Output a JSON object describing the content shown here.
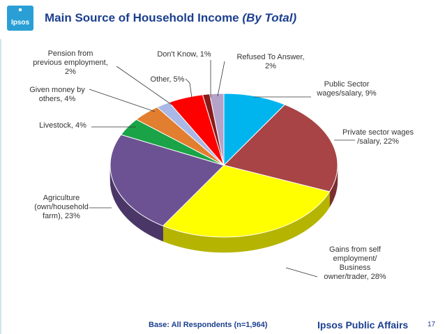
{
  "header": {
    "logo_text": "Ipsos",
    "title": "Main Source of Household Income",
    "title_emphasis": "(By Total)"
  },
  "chart_data": {
    "type": "pie",
    "title": "Main Source of Household Income (By Total)",
    "slices": [
      {
        "label": "Public Sector wages/salary, 9%",
        "value": 9,
        "color": "#00b4ee",
        "dark": "#0087b3"
      },
      {
        "label": "Private sector wages /salary, 22%",
        "value": 22,
        "color": "#a84445",
        "dark": "#7a2f30"
      },
      {
        "label": "Gains from self employment/ Business owner/trader, 28%",
        "value": 28,
        "color": "#ffff00",
        "dark": "#b5b400"
      },
      {
        "label": "Agriculture (own/household farm), 23%",
        "value": 23,
        "color": "#6d5293",
        "dark": "#4a3767"
      },
      {
        "label": "Livestock, 4%",
        "value": 4,
        "color": "#1aa347",
        "dark": "#137533"
      },
      {
        "label": "Given money by others, 4%",
        "value": 4,
        "color": "#e27e2f",
        "dark": "#a9581c"
      },
      {
        "label": "Pension from previous employment, 2%",
        "value": 2,
        "color": "#a9b8e6",
        "dark": "#7c8bb5"
      },
      {
        "label": "Other, 5%",
        "value": 5,
        "color": "#ff0000",
        "dark": "#b30000"
      },
      {
        "label": "Don't Know, 1%",
        "value": 1,
        "color": "#8b1a1a",
        "dark": "#5c1010"
      },
      {
        "label": "Refused To Answer, 2%",
        "value": 2,
        "color": "#b5a2c8",
        "dark": "#8a799c"
      }
    ]
  },
  "footer": {
    "base": "Base: All Respondents (n=1,964)",
    "brand": "Ipsos Public Affairs",
    "page": "17"
  }
}
